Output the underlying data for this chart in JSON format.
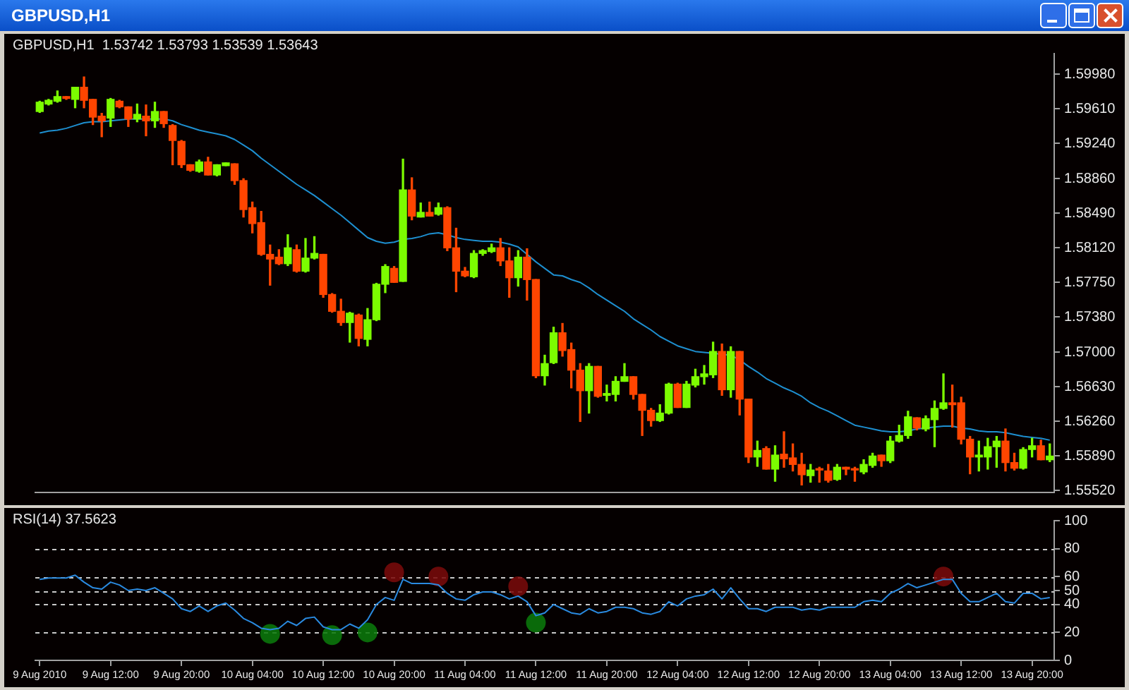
{
  "chart_data": [
    {
      "type": "candlestick",
      "title": "GBPUSD,H1",
      "subtitle": "GBPUSD,H1  1.53742 1.53793 1.53539 1.53643",
      "ohlc": [
        [
          1.5958,
          1.5969,
          1.5957,
          1.5968
        ],
        [
          1.5966,
          1.5971,
          1.5965,
          1.597
        ],
        [
          1.5969,
          1.598,
          1.5968,
          1.5974
        ],
        [
          1.5974,
          1.5974,
          1.5971,
          1.5972
        ],
        [
          1.5971,
          1.5984,
          1.5962,
          1.5984
        ],
        [
          1.5984,
          1.5995,
          1.5962,
          1.597
        ],
        [
          1.5971,
          1.5971,
          1.5944,
          1.5952
        ],
        [
          1.5953,
          1.5956,
          1.5931,
          1.5948
        ],
        [
          1.5951,
          1.5972,
          1.5942,
          1.5971
        ],
        [
          1.5969,
          1.597,
          1.5962,
          1.5963
        ],
        [
          1.5963,
          1.5963,
          1.5942,
          1.595
        ],
        [
          1.595,
          1.5966,
          1.5947,
          1.5955
        ],
        [
          1.5953,
          1.5965,
          1.5932,
          1.5948
        ],
        [
          1.5948,
          1.5968,
          1.5941,
          1.5958
        ],
        [
          1.5958,
          1.5958,
          1.5941,
          1.5945
        ],
        [
          1.5943,
          1.5944,
          1.5901,
          1.5927
        ],
        [
          1.5926,
          1.5927,
          1.5898,
          1.5901
        ],
        [
          1.5901,
          1.5901,
          1.5894,
          1.5895
        ],
        [
          1.5894,
          1.5906,
          1.5893,
          1.5904
        ],
        [
          1.5904,
          1.5909,
          1.589,
          1.589
        ],
        [
          1.589,
          1.5901,
          1.5889,
          1.5901
        ],
        [
          1.59,
          1.5903,
          1.59,
          1.5903
        ],
        [
          1.5902,
          1.5902,
          1.588,
          1.5884
        ],
        [
          1.5884,
          1.5886,
          1.5845,
          1.5853
        ],
        [
          1.5855,
          1.5861,
          1.5828,
          1.5838
        ],
        [
          1.5839,
          1.5851,
          1.5804,
          1.5805
        ],
        [
          1.5805,
          1.5815,
          1.5772,
          1.58
        ],
        [
          1.5802,
          1.581,
          1.5794,
          1.5795
        ],
        [
          1.5795,
          1.5826,
          1.5793,
          1.5812
        ],
        [
          1.581,
          1.5815,
          1.5786,
          1.5787
        ],
        [
          1.5787,
          1.5822,
          1.5786,
          1.5801
        ],
        [
          1.5801,
          1.5824,
          1.58,
          1.5806
        ],
        [
          1.5805,
          1.5805,
          1.5759,
          1.5762
        ],
        [
          1.5762,
          1.5763,
          1.5743,
          1.5744
        ],
        [
          1.5744,
          1.5757,
          1.5729,
          1.5732
        ],
        [
          1.5732,
          1.5743,
          1.5711,
          1.5742
        ],
        [
          1.574,
          1.5741,
          1.5707,
          1.5715
        ],
        [
          1.5714,
          1.5747,
          1.5707,
          1.5735
        ],
        [
          1.5735,
          1.5774,
          1.5734,
          1.5773
        ],
        [
          1.5773,
          1.5794,
          1.5764,
          1.5792
        ],
        [
          1.579,
          1.5792,
          1.5775,
          1.5775
        ],
        [
          1.5776,
          1.5907,
          1.5776,
          1.5874
        ],
        [
          1.5874,
          1.5887,
          1.5842,
          1.5846
        ],
        [
          1.5845,
          1.586,
          1.5845,
          1.585
        ],
        [
          1.585,
          1.5861,
          1.5846,
          1.5846
        ],
        [
          1.5848,
          1.586,
          1.5847,
          1.5855
        ],
        [
          1.5855,
          1.5856,
          1.5809,
          1.5812
        ],
        [
          1.5812,
          1.5833,
          1.5765,
          1.5787
        ],
        [
          1.5787,
          1.5791,
          1.5781,
          1.5782
        ],
        [
          1.5781,
          1.5809,
          1.578,
          1.5806
        ],
        [
          1.5806,
          1.581,
          1.5804,
          1.5809
        ],
        [
          1.5808,
          1.5816,
          1.5807,
          1.5812
        ],
        [
          1.5812,
          1.5822,
          1.5793,
          1.5798
        ],
        [
          1.5798,
          1.5812,
          1.5759,
          1.578
        ],
        [
          1.578,
          1.5809,
          1.5771,
          1.5802
        ],
        [
          1.5802,
          1.5811,
          1.5756,
          1.5778
        ],
        [
          1.5778,
          1.5778,
          1.5673,
          1.5675
        ],
        [
          1.5675,
          1.5697,
          1.5665,
          1.5688
        ],
        [
          1.5689,
          1.5727,
          1.5688,
          1.5721
        ],
        [
          1.5721,
          1.5731,
          1.5696,
          1.5702
        ],
        [
          1.5703,
          1.571,
          1.5662,
          1.5681
        ],
        [
          1.5681,
          1.5688,
          1.5626,
          1.5659
        ],
        [
          1.5659,
          1.5688,
          1.5635,
          1.5685
        ],
        [
          1.5685,
          1.5685,
          1.5652,
          1.5653
        ],
        [
          1.5654,
          1.5665,
          1.5648,
          1.5656
        ],
        [
          1.5655,
          1.5674,
          1.5648,
          1.5669
        ],
        [
          1.5669,
          1.5688,
          1.5669,
          1.5674
        ],
        [
          1.5674,
          1.5674,
          1.565,
          1.5655
        ],
        [
          1.5655,
          1.5655,
          1.5611,
          1.5638
        ],
        [
          1.5638,
          1.564,
          1.5621,
          1.5627
        ],
        [
          1.5627,
          1.5644,
          1.5626,
          1.5635
        ],
        [
          1.5635,
          1.5667,
          1.5634,
          1.5666
        ],
        [
          1.5666,
          1.5667,
          1.5641,
          1.5641
        ],
        [
          1.5641,
          1.5669,
          1.5641,
          1.5666
        ],
        [
          1.5665,
          1.5682,
          1.5663,
          1.5674
        ],
        [
          1.5674,
          1.5686,
          1.5666,
          1.5677
        ],
        [
          1.5676,
          1.5711,
          1.5673,
          1.5701
        ],
        [
          1.5701,
          1.5709,
          1.5654,
          1.566
        ],
        [
          1.566,
          1.5706,
          1.5652,
          1.5701
        ],
        [
          1.5701,
          1.5701,
          1.5633,
          1.565
        ],
        [
          1.565,
          1.565,
          1.5582,
          1.5588
        ],
        [
          1.5588,
          1.5605,
          1.5578,
          1.5595
        ],
        [
          1.5597,
          1.5599,
          1.5575,
          1.5575
        ],
        [
          1.5575,
          1.56,
          1.5562,
          1.559
        ],
        [
          1.5591,
          1.5615,
          1.5577,
          1.5586
        ],
        [
          1.5587,
          1.5602,
          1.5573,
          1.558
        ],
        [
          1.558,
          1.5592,
          1.5558,
          1.5569
        ],
        [
          1.5568,
          1.558,
          1.5561,
          1.5574
        ],
        [
          1.5575,
          1.5577,
          1.5561,
          1.5574
        ],
        [
          1.5573,
          1.558,
          1.5561,
          1.5563
        ],
        [
          1.5564,
          1.558,
          1.5563,
          1.5577
        ],
        [
          1.5577,
          1.5577,
          1.5569,
          1.5575
        ],
        [
          1.5575,
          1.5577,
          1.5562,
          1.5574
        ],
        [
          1.5572,
          1.5585,
          1.557,
          1.558
        ],
        [
          1.5579,
          1.5592,
          1.5577,
          1.5589
        ],
        [
          1.559,
          1.559,
          1.5578,
          1.5584
        ],
        [
          1.5584,
          1.561,
          1.5582,
          1.5605
        ],
        [
          1.5605,
          1.5622,
          1.5604,
          1.5611
        ],
        [
          1.5611,
          1.5637,
          1.5608,
          1.5631
        ],
        [
          1.563,
          1.563,
          1.5617,
          1.5619
        ],
        [
          1.5618,
          1.5632,
          1.5616,
          1.5629
        ],
        [
          1.5628,
          1.5648,
          1.5599,
          1.564
        ],
        [
          1.564,
          1.5677,
          1.5639,
          1.5646
        ],
        [
          1.5646,
          1.5665,
          1.562,
          1.5644
        ],
        [
          1.5646,
          1.5652,
          1.5602,
          1.5607
        ],
        [
          1.5607,
          1.561,
          1.557,
          1.5588
        ],
        [
          1.5588,
          1.5605,
          1.5573,
          1.559
        ],
        [
          1.5588,
          1.5608,
          1.5575,
          1.5599
        ],
        [
          1.5599,
          1.561,
          1.5577,
          1.5605
        ],
        [
          1.5605,
          1.5618,
          1.5573,
          1.5582
        ],
        [
          1.5582,
          1.5592,
          1.5574,
          1.5576
        ],
        [
          1.5576,
          1.5598,
          1.5575,
          1.5596
        ],
        [
          1.5596,
          1.5608,
          1.5588,
          1.56
        ],
        [
          1.56,
          1.5606,
          1.5585,
          1.5585
        ],
        [
          1.5585,
          1.5602,
          1.5583,
          1.5589
        ]
      ],
      "colors": [
        "#7cfc00",
        "#7cfc00",
        "#7cfc00",
        "#ff4500",
        "#7cfc00",
        "#ff4500",
        "#ff4500",
        "#ff4500",
        "#7cfc00",
        "#ff4500",
        "#ff4500",
        "#7cfc00",
        "#ff4500",
        "#7cfc00",
        "#ff4500",
        "#ff4500",
        "#ff4500",
        "#ff4500",
        "#7cfc00",
        "#ff4500",
        "#7cfc00",
        "#7cfc00",
        "#ff4500",
        "#ff4500",
        "#ff4500",
        "#ff4500",
        "#ff4500",
        "#ff4500",
        "#7cfc00",
        "#ff4500",
        "#7cfc00",
        "#7cfc00",
        "#ff4500",
        "#ff4500",
        "#ff4500",
        "#7cfc00",
        "#ff4500",
        "#7cfc00",
        "#7cfc00",
        "#7cfc00",
        "#ff4500",
        "#7cfc00",
        "#ff4500",
        "#7cfc00",
        "#ff4500",
        "#7cfc00",
        "#ff4500",
        "#ff4500",
        "#ff4500",
        "#7cfc00",
        "#7cfc00",
        "#7cfc00",
        "#ff4500",
        "#ff4500",
        "#7cfc00",
        "#ff4500",
        "#ff4500",
        "#7cfc00",
        "#7cfc00",
        "#ff4500",
        "#ff4500",
        "#ff4500",
        "#7cfc00",
        "#ff4500",
        "#7cfc00",
        "#7cfc00",
        "#7cfc00",
        "#ff4500",
        "#ff4500",
        "#ff4500",
        "#7cfc00",
        "#7cfc00",
        "#ff4500",
        "#7cfc00",
        "#7cfc00",
        "#7cfc00",
        "#7cfc00",
        "#ff4500",
        "#7cfc00",
        "#ff4500",
        "#ff4500",
        "#7cfc00",
        "#ff4500",
        "#7cfc00",
        "#ff4500",
        "#ff4500",
        "#ff4500",
        "#7cfc00",
        "#ff4500",
        "#ff4500",
        "#7cfc00",
        "#ff4500",
        "#ff4500",
        "#7cfc00",
        "#7cfc00",
        "#ff4500",
        "#7cfc00",
        "#7cfc00",
        "#7cfc00",
        "#ff4500",
        "#7cfc00",
        "#7cfc00",
        "#7cfc00",
        "#ff4500",
        "#ff4500",
        "#ff4500",
        "#7cfc00",
        "#7cfc00",
        "#7cfc00",
        "#ff4500",
        "#ff4500",
        "#7cfc00",
        "#7cfc00",
        "#ff4500",
        "#7cfc00"
      ],
      "series": [
        {
          "type": "line",
          "color": "#1e8fd0",
          "marker": "none",
          "values": [
            1.5935,
            1.5937,
            1.5938,
            1.594,
            1.5943,
            1.5946,
            1.5947,
            1.5947,
            1.5948,
            1.5949,
            1.595,
            1.595,
            1.595,
            1.595,
            1.595,
            1.5948,
            1.5944,
            1.5941,
            1.5938,
            1.5936,
            1.5934,
            1.5932,
            1.5928,
            1.5922,
            1.5916,
            1.5908,
            1.5901,
            1.5894,
            1.5887,
            1.588,
            1.5874,
            1.5868,
            1.5861,
            1.5854,
            1.5847,
            1.5839,
            1.5831,
            1.5823,
            1.5819,
            1.5817,
            1.5818,
            1.5821,
            1.5822,
            1.5824,
            1.5827,
            1.5828,
            1.5826,
            1.5823,
            1.5821,
            1.582,
            1.5819,
            1.5819,
            1.5818,
            1.5816,
            1.5813,
            1.5805,
            1.5797,
            1.579,
            1.5783,
            1.5782,
            1.5778,
            1.5775,
            1.5769,
            1.5762,
            1.5756,
            1.575,
            1.5744,
            1.5736,
            1.573,
            1.5724,
            1.5717,
            1.5712,
            1.5707,
            1.5704,
            1.5701,
            1.57,
            1.5699,
            1.5698,
            1.5697,
            1.5692,
            1.5685,
            1.5679,
            1.5672,
            1.5667,
            1.5662,
            1.5658,
            1.5653,
            1.5646,
            1.5641,
            1.5637,
            1.5632,
            1.5627,
            1.5622,
            1.562,
            1.5618,
            1.5616,
            1.5615,
            1.5615,
            1.5616,
            1.5618,
            1.5619,
            1.562,
            1.5621,
            1.5621,
            1.5619,
            1.5618,
            1.5616,
            1.5615,
            1.5615,
            1.5614,
            1.5612,
            1.561,
            1.5609,
            1.5608,
            1.5606
          ]
        }
      ],
      "ylim": [
        1.555,
        1.602
      ],
      "yticks": [
        {
          "value": 1.5998,
          "label": "1.59980"
        },
        {
          "value": 1.5961,
          "label": "1.59610"
        },
        {
          "value": 1.5924,
          "label": "1.59240"
        },
        {
          "value": 1.5886,
          "label": "1.58860"
        },
        {
          "value": 1.5849,
          "label": "1.58490"
        },
        {
          "value": 1.5812,
          "label": "1.58120"
        },
        {
          "value": 1.5775,
          "label": "1.57750"
        },
        {
          "value": 1.5738,
          "label": "1.57380"
        },
        {
          "value": 1.57,
          "label": "1.57000"
        },
        {
          "value": 1.5663,
          "label": "1.56630"
        },
        {
          "value": 1.5626,
          "label": "1.56260"
        },
        {
          "value": 1.5589,
          "label": "1.55890"
        },
        {
          "value": 1.5552,
          "label": "1.55520"
        }
      ],
      "tick_labels": "y"
    },
    {
      "type": "line",
      "title": "RSI(14) 37.5623",
      "categories": [
        "9 Aug 2010",
        null,
        null,
        null,
        null,
        null,
        null,
        null,
        "9 Aug 12:00",
        null,
        null,
        null,
        null,
        null,
        null,
        null,
        "9 Aug 20:00",
        null,
        null,
        null,
        null,
        null,
        null,
        null,
        "10 Aug 04:00",
        null,
        null,
        null,
        null,
        null,
        null,
        null,
        "10 Aug 12:00",
        null,
        null,
        null,
        null,
        null,
        null,
        null,
        "10 Aug 20:00",
        null,
        null,
        null,
        null,
        null,
        null,
        null,
        "11 Aug 04:00",
        null,
        null,
        null,
        null,
        null,
        null,
        null,
        "11 Aug 12:00",
        null,
        null,
        null,
        null,
        null,
        null,
        null,
        "11 Aug 20:00",
        null,
        null,
        null,
        null,
        null,
        null,
        null,
        "12 Aug 04:00",
        null,
        null,
        null,
        null,
        null,
        null,
        null,
        "12 Aug 12:00",
        null,
        null,
        null,
        null,
        null,
        null,
        null,
        "12 Aug 20:00",
        null,
        null,
        null,
        null,
        null,
        null,
        null,
        "13 Aug 04:00",
        null,
        null,
        null,
        null,
        null,
        null,
        null,
        "13 Aug 12:00",
        null,
        null,
        null,
        null,
        null,
        null,
        null,
        "13 Aug 20:00",
        null,
        null
      ],
      "series": [
        {
          "type": "line",
          "color": "#2a8ae0",
          "marker": "none",
          "values": [
            58,
            59,
            59,
            59,
            61,
            56,
            52,
            51,
            56,
            54,
            50,
            51,
            50,
            52,
            48,
            44,
            37,
            35,
            39,
            35,
            39,
            41,
            36,
            30,
            27,
            23,
            22,
            23,
            28,
            25,
            30,
            31,
            24,
            22,
            22,
            26,
            23,
            29,
            40,
            45,
            43,
            58,
            55,
            55,
            55,
            54,
            48,
            44,
            43,
            47,
            49,
            49,
            47,
            44,
            46,
            42,
            32,
            34,
            40,
            37,
            34,
            33,
            37,
            34,
            35,
            38,
            38,
            37,
            34,
            33,
            35,
            42,
            39,
            44,
            46,
            47,
            51,
            44,
            52,
            44,
            37,
            37,
            35,
            38,
            38,
            38,
            36,
            37,
            36,
            38,
            38,
            38,
            38,
            42,
            43,
            42,
            48,
            51,
            55,
            52,
            54,
            56,
            58,
            58,
            48,
            42,
            42,
            45,
            48,
            42,
            41,
            48,
            48,
            44,
            45
          ]
        },
        {
          "type": "scatter",
          "color": "#0b7a0b",
          "marker": "circle",
          "values": [
            null,
            null,
            null,
            null,
            null,
            null,
            null,
            null,
            null,
            null,
            null,
            null,
            null,
            null,
            null,
            null,
            null,
            null,
            null,
            null,
            null,
            null,
            null,
            null,
            null,
            null,
            19,
            null,
            null,
            null,
            null,
            null,
            null,
            18,
            null,
            null,
            null,
            20,
            null,
            null,
            null,
            null,
            null,
            null,
            null,
            null,
            null,
            null,
            null,
            null,
            null,
            null,
            null,
            null,
            null,
            null,
            27,
            null,
            null,
            null,
            null,
            null,
            null,
            null,
            null,
            null,
            null,
            null,
            null,
            null,
            null,
            null,
            null,
            null,
            null,
            null,
            null,
            null,
            null,
            null,
            null,
            null,
            null,
            null,
            null,
            null,
            null,
            null,
            null,
            null,
            null,
            null,
            null,
            null,
            null,
            null,
            null,
            null,
            null,
            null,
            null,
            null,
            null,
            null,
            null,
            null,
            null,
            null,
            null,
            null,
            null,
            null,
            null,
            null,
            null
          ]
        },
        {
          "type": "scatter",
          "color": "#7a0a0a",
          "marker": "circle",
          "values": [
            null,
            null,
            null,
            null,
            null,
            null,
            null,
            null,
            null,
            null,
            null,
            null,
            null,
            null,
            null,
            null,
            null,
            null,
            null,
            null,
            null,
            null,
            null,
            null,
            null,
            null,
            null,
            null,
            null,
            null,
            null,
            null,
            null,
            null,
            null,
            null,
            null,
            null,
            null,
            null,
            63,
            null,
            null,
            null,
            null,
            60,
            null,
            null,
            null,
            null,
            null,
            null,
            null,
            null,
            53,
            null,
            null,
            null,
            null,
            null,
            null,
            null,
            null,
            null,
            null,
            null,
            null,
            null,
            null,
            null,
            null,
            null,
            null,
            null,
            null,
            null,
            null,
            null,
            null,
            null,
            null,
            null,
            null,
            null,
            null,
            null,
            null,
            null,
            null,
            null,
            null,
            null,
            null,
            null,
            null,
            null,
            null,
            null,
            null,
            null,
            null,
            null,
            60,
            null,
            null,
            null,
            null,
            null,
            null,
            null,
            null,
            null,
            null,
            null,
            null
          ]
        }
      ],
      "ylim": [
        0,
        100
      ],
      "yticks": [
        0,
        20,
        40,
        50,
        60,
        80,
        100
      ],
      "ref_lines": [
        {
          "axis": "y",
          "value": 20,
          "color": "#c8c8c8",
          "line_style": "dashed"
        },
        {
          "axis": "y",
          "value": 40,
          "color": "#c8c8c8",
          "line_style": "dashed"
        },
        {
          "axis": "y",
          "value": 50,
          "color": "#c8c8c8",
          "line_style": "dashed"
        },
        {
          "axis": "y",
          "value": 60,
          "color": "#c8c8c8",
          "line_style": "dashed"
        },
        {
          "axis": "y",
          "value": 80,
          "color": "#c8c8c8",
          "line_style": "dashed"
        }
      ]
    }
  ]
}
